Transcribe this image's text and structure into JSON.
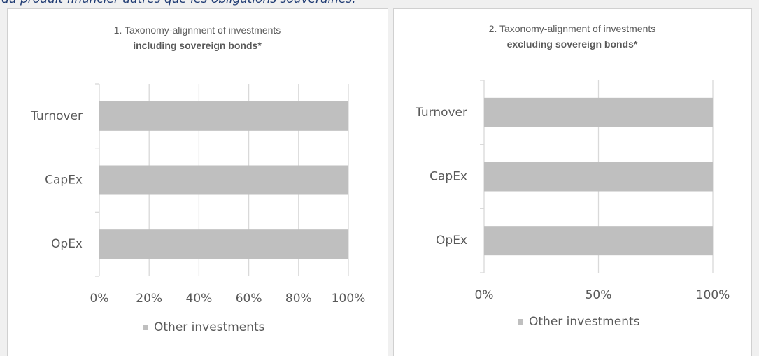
{
  "intro": "du produit financier autres que les obligations souveraines.",
  "chart_data": [
    {
      "type": "barh",
      "title": "1. Taxonomy-alignment of investments",
      "subtitle": "including sovereign bonds*",
      "categories": [
        "Turnover",
        "CapEx",
        "OpEx"
      ],
      "series": [
        {
          "name": "Other investments",
          "color": "#bfbfbf",
          "values": [
            100,
            100,
            100
          ]
        }
      ],
      "xlim": [
        0,
        100
      ],
      "xticks": [
        {
          "value": 0,
          "label": "0%"
        },
        {
          "value": 20,
          "label": "20%"
        },
        {
          "value": 40,
          "label": "40%"
        },
        {
          "value": 60,
          "label": "60%"
        },
        {
          "value": 80,
          "label": "80%"
        },
        {
          "value": 100,
          "label": "100%"
        }
      ],
      "grid": true,
      "legend": "bottom"
    },
    {
      "type": "barh",
      "title": "2. Taxonomy-alignment of investments",
      "subtitle": "excluding sovereign bonds*",
      "categories": [
        "Turnover",
        "CapEx",
        "OpEx"
      ],
      "series": [
        {
          "name": "Other investments",
          "color": "#bfbfbf",
          "values": [
            100,
            100,
            100
          ]
        }
      ],
      "xlim": [
        0,
        100
      ],
      "xticks": [
        {
          "value": 0,
          "label": "0%"
        },
        {
          "value": 50,
          "label": "50%"
        },
        {
          "value": 100,
          "label": "100%"
        }
      ],
      "grid": true,
      "legend": "bottom"
    }
  ]
}
